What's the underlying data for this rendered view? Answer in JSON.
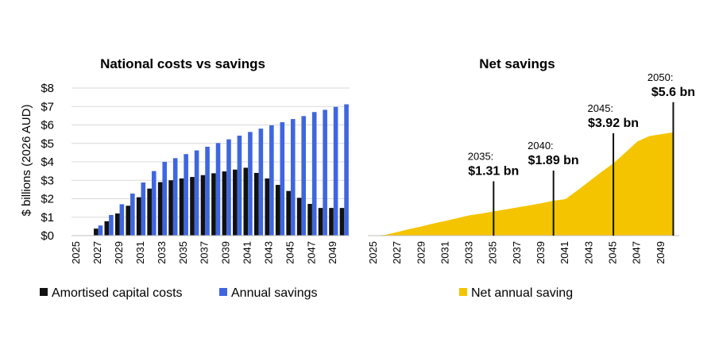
{
  "chart_data": [
    {
      "type": "bar",
      "title": "National costs vs savings",
      "ylabel": "$ billions (2026 AUD)",
      "ylim": [
        0,
        8
      ],
      "yticks": [
        "$0",
        "$1",
        "$2",
        "$3",
        "$4",
        "$5",
        "$6",
        "$7",
        "$8"
      ],
      "grid": true,
      "legend_position": "bottom",
      "categories": [
        2025,
        2026,
        2027,
        2028,
        2029,
        2030,
        2031,
        2032,
        2033,
        2034,
        2035,
        2036,
        2037,
        2038,
        2039,
        2040,
        2041,
        2042,
        2043,
        2044,
        2045,
        2046,
        2047,
        2048,
        2049,
        2050
      ],
      "xtick_labels": [
        "2025",
        "2027",
        "2029",
        "2031",
        "2033",
        "2035",
        "2037",
        "2039",
        "2041",
        "2043",
        "2045",
        "2047",
        "2049"
      ],
      "series": [
        {
          "name": "Amortised capital costs",
          "color": "#111111",
          "values": [
            0,
            0,
            0.38,
            0.78,
            1.2,
            1.62,
            2.08,
            2.55,
            2.9,
            3.0,
            3.1,
            3.18,
            3.28,
            3.38,
            3.48,
            3.58,
            3.68,
            3.4,
            3.1,
            2.75,
            2.42,
            2.05,
            1.72,
            1.5,
            1.5,
            1.5
          ]
        },
        {
          "name": "Annual savings",
          "color": "#3f66e0",
          "values": [
            0,
            0,
            0.55,
            1.12,
            1.7,
            2.28,
            2.88,
            3.5,
            4.0,
            4.2,
            4.42,
            4.62,
            4.82,
            5.02,
            5.22,
            5.42,
            5.62,
            5.8,
            5.98,
            6.15,
            6.32,
            6.48,
            6.7,
            6.82,
            6.98,
            7.12
          ]
        }
      ]
    },
    {
      "type": "area",
      "title": "Net savings",
      "ylim": [
        0,
        8
      ],
      "grid": false,
      "legend_position": "bottom",
      "x": [
        2025,
        2026,
        2027,
        2028,
        2029,
        2030,
        2031,
        2032,
        2033,
        2034,
        2035,
        2036,
        2037,
        2038,
        2039,
        2040,
        2041,
        2042,
        2043,
        2044,
        2045,
        2046,
        2047,
        2048,
        2049,
        2050
      ],
      "xtick_labels": [
        "2025",
        "2027",
        "2029",
        "2031",
        "2033",
        "2035",
        "2037",
        "2039",
        "2041",
        "2043",
        "2045",
        "2047",
        "2049"
      ],
      "series": [
        {
          "name": "Net annual saving",
          "color": "#f5c400",
          "values": [
            0,
            0.05,
            0.2,
            0.36,
            0.5,
            0.66,
            0.8,
            0.95,
            1.1,
            1.2,
            1.31,
            1.42,
            1.53,
            1.64,
            1.76,
            1.89,
            1.98,
            2.45,
            2.95,
            3.45,
            3.92,
            4.5,
            5.1,
            5.4,
            5.5,
            5.6
          ]
        }
      ],
      "annotations": [
        {
          "x": 2035,
          "year_label": "2035:",
          "value_label": "$1.31 bn",
          "value": 1.31
        },
        {
          "x": 2040,
          "year_label": "2040:",
          "value_label": "$1.89 bn",
          "value": 1.89
        },
        {
          "x": 2045,
          "year_label": "2045:",
          "value_label": "$3.92 bn",
          "value": 3.92
        },
        {
          "x": 2050,
          "year_label": "2050:",
          "value_label": "$5.6 bn",
          "value": 5.6
        }
      ]
    }
  ]
}
